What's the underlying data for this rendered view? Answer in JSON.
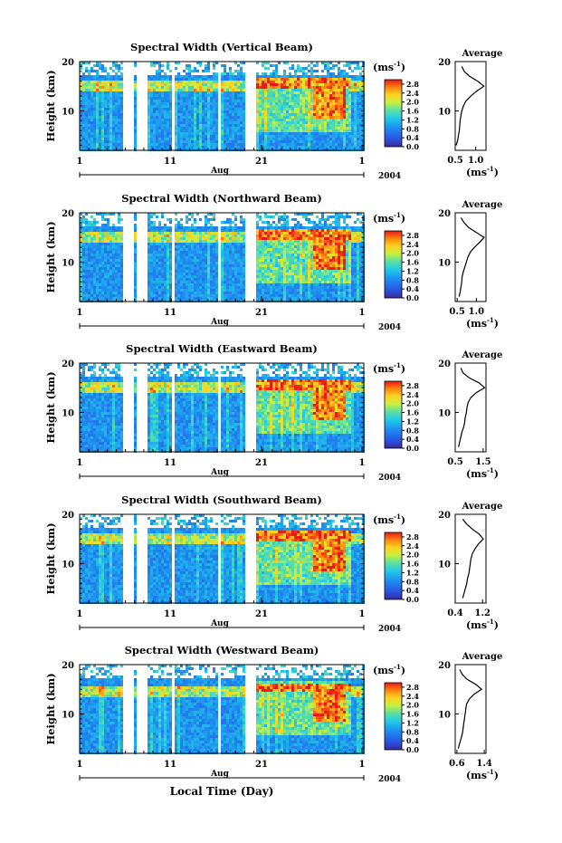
{
  "figure": {
    "xlabel_bottom": "Local Time (Day)",
    "month_label": "Aug",
    "year_label": "2004",
    "colorbar_unit": "(ms",
    "colorbar_unit_exp": "-1",
    "colorbar_unit_close": ")",
    "avg_title": "Average",
    "avg_xlabel": "(ms",
    "avg_xlabel_exp": "-1",
    "avg_xlabel_close": ")"
  },
  "chart_data": [
    {
      "type": "heatmap",
      "title": "Spectral Width (Vertical Beam)",
      "ylabel": "Height (km)",
      "ylim": [
        2,
        20
      ],
      "x_ticks": [
        "1",
        "11",
        "21",
        "1"
      ],
      "y_ticks": [
        "10",
        "20"
      ],
      "colorbar_ticks": [
        "0.0",
        "0.4",
        "0.8",
        "1.2",
        "1.6",
        "2.0",
        "2.4",
        "2.8"
      ],
      "colorbar_range": [
        0.0,
        3.0
      ],
      "average_profile": {
        "xticks": [
          "0.5",
          "1.0"
        ],
        "xlim": [
          0.5,
          1.25
        ],
        "height": [
          3,
          4,
          5,
          6,
          7,
          8,
          9,
          10,
          11,
          12,
          13,
          14,
          15,
          16,
          17,
          18,
          19
        ],
        "value": [
          0.52,
          0.56,
          0.58,
          0.6,
          0.61,
          0.62,
          0.64,
          0.66,
          0.7,
          0.76,
          0.88,
          1.02,
          1.2,
          1.05,
          0.85,
          0.72,
          0.66
        ]
      }
    },
    {
      "type": "heatmap",
      "title": "Spectral Width (Northward Beam)",
      "ylabel": "Height (km)",
      "ylim": [
        2,
        20
      ],
      "x_ticks": [
        "1",
        "11",
        "21",
        "1"
      ],
      "y_ticks": [
        "10",
        "20"
      ],
      "colorbar_ticks": [
        "0.0",
        "0.4",
        "0.8",
        "1.2",
        "1.6",
        "2.0",
        "2.4",
        "2.8"
      ],
      "colorbar_range": [
        0.0,
        3.0
      ],
      "average_profile": {
        "xticks": [
          "0.5",
          "1.0"
        ],
        "xlim": [
          0.45,
          1.25
        ],
        "height": [
          3,
          4,
          5,
          6,
          7,
          8,
          9,
          10,
          11,
          12,
          13,
          14,
          15,
          16,
          17,
          18,
          19
        ],
        "value": [
          0.55,
          0.58,
          0.6,
          0.62,
          0.63,
          0.66,
          0.7,
          0.74,
          0.78,
          0.84,
          0.95,
          1.08,
          1.2,
          1.0,
          0.8,
          0.68,
          0.6
        ]
      }
    },
    {
      "type": "heatmap",
      "title": "Spectral Width (Eastward Beam)",
      "ylabel": "Height (km)",
      "ylim": [
        2,
        20
      ],
      "x_ticks": [
        "1",
        "11",
        "21",
        "1"
      ],
      "y_ticks": [
        "10",
        "20"
      ],
      "colorbar_ticks": [
        "0.0",
        "0.4",
        "0.8",
        "1.2",
        "1.6",
        "2.0",
        "2.4",
        "2.8"
      ],
      "colorbar_range": [
        0.0,
        3.0
      ],
      "average_profile": {
        "xticks": [
          "0.5",
          "1.5"
        ],
        "xlim": [
          0.5,
          1.6
        ],
        "height": [
          3,
          4,
          5,
          6,
          7,
          8,
          9,
          10,
          11,
          12,
          13,
          14,
          15,
          16,
          17,
          18,
          19
        ],
        "value": [
          0.62,
          0.66,
          0.7,
          0.74,
          0.8,
          0.84,
          0.86,
          0.9,
          0.92,
          0.96,
          1.06,
          1.25,
          1.55,
          1.35,
          1.0,
          0.78,
          0.7
        ]
      }
    },
    {
      "type": "heatmap",
      "title": "Spectral Width (Southward Beam)",
      "ylabel": "Height (km)",
      "ylim": [
        2,
        20
      ],
      "x_ticks": [
        "1",
        "11",
        "21",
        "1"
      ],
      "y_ticks": [
        "10",
        "20"
      ],
      "colorbar_ticks": [
        "0.0",
        "0.4",
        "0.8",
        "1.2",
        "1.6",
        "2.0",
        "2.4",
        "2.8"
      ],
      "colorbar_range": [
        0.0,
        3.0
      ],
      "average_profile": {
        "xticks": [
          "0.4",
          "1.2"
        ],
        "xlim": [
          0.4,
          1.3
        ],
        "height": [
          3,
          4,
          5,
          6,
          7,
          8,
          9,
          10,
          11,
          12,
          13,
          14,
          15,
          16,
          17,
          18,
          19
        ],
        "value": [
          0.62,
          0.66,
          0.7,
          0.74,
          0.76,
          0.8,
          0.82,
          0.84,
          0.86,
          0.9,
          0.98,
          1.08,
          1.22,
          1.1,
          0.9,
          0.74,
          0.62
        ]
      }
    },
    {
      "type": "heatmap",
      "title": "Spectral Width (Westward Beam)",
      "ylabel": "Height (km)",
      "ylim": [
        2,
        20
      ],
      "x_ticks": [
        "1",
        "11",
        "21",
        "1"
      ],
      "y_ticks": [
        "10",
        "20"
      ],
      "colorbar_ticks": [
        "0.0",
        "0.4",
        "0.8",
        "1.2",
        "1.6",
        "2.0",
        "2.4",
        "2.8"
      ],
      "colorbar_range": [
        0.0,
        3.0
      ],
      "average_profile": {
        "xticks": [
          "0.6",
          "1.4"
        ],
        "xlim": [
          0.55,
          1.45
        ],
        "height": [
          3,
          4,
          5,
          6,
          7,
          8,
          9,
          10,
          11,
          12,
          13,
          14,
          15,
          16,
          17,
          18,
          19
        ],
        "value": [
          0.64,
          0.68,
          0.72,
          0.76,
          0.78,
          0.8,
          0.82,
          0.84,
          0.86,
          0.88,
          0.96,
          1.1,
          1.32,
          1.15,
          0.9,
          0.76,
          0.68
        ]
      }
    }
  ]
}
